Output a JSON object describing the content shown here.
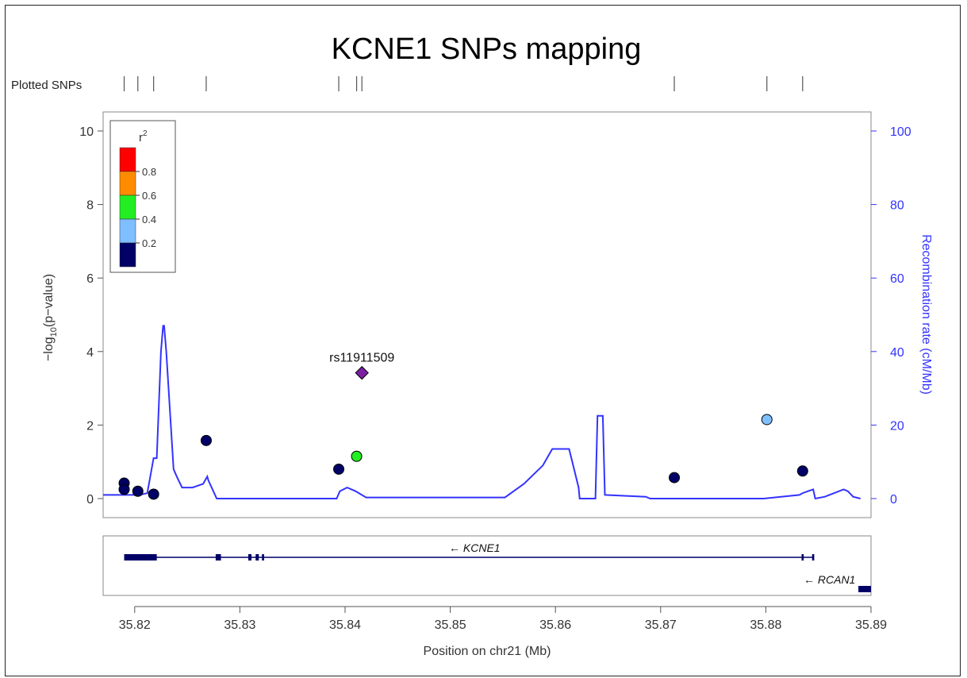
{
  "chart_data": {
    "type": "scatter",
    "title": "KCNE1 SNPs mapping",
    "plotted_snps_label": "Plotted SNPs",
    "xlabel": "Position on chr21 (Mb)",
    "ylabel": "-log10(p-value)",
    "ylabel_parts": {
      "pre": "−log",
      "sub": "10",
      "post": "(p−value)"
    },
    "y2label": "Recombination rate (cM/Mb)",
    "xlim": [
      35.817,
      35.89
    ],
    "ylim": [
      0,
      10
    ],
    "y2lim": [
      0,
      100
    ],
    "xticks": [
      35.82,
      35.83,
      35.84,
      35.85,
      35.86,
      35.87,
      35.88,
      35.89
    ],
    "yticks": [
      0,
      2,
      4,
      6,
      8,
      10
    ],
    "y2ticks": [
      0,
      20,
      40,
      60,
      80,
      100
    ],
    "colors": {
      "recomb_line": "#3333ff",
      "lead_snp": "#7b1fa2",
      "r2_0.0-0.2": "#000066",
      "r2_0.2-0.4": "#7fbfff",
      "r2_0.4-0.6": "#22ee22",
      "r2_0.6-0.8": "#ff8c00",
      "r2_0.8-1.0": "#ff0000"
    },
    "legend": {
      "title": "r",
      "title_sup": "2",
      "placement": "top-left",
      "bins": [
        {
          "color": "#ff0000",
          "label": "0.8"
        },
        {
          "color": "#ff8c00",
          "label": "0.6"
        },
        {
          "color": "#22ee22",
          "label": "0.4"
        },
        {
          "color": "#7fbfff",
          "label": "0.2"
        },
        {
          "color": "#000066",
          "label": ""
        }
      ]
    },
    "lead_snp": {
      "name": "rs11911509",
      "x": 35.8416,
      "y": 3.42,
      "color": "#7b1fa2",
      "shape": "diamond"
    },
    "snps": [
      {
        "x": 35.819,
        "y": 0.42,
        "color": "#000066"
      },
      {
        "x": 35.819,
        "y": 0.25,
        "color": "#000066"
      },
      {
        "x": 35.8203,
        "y": 0.2,
        "color": "#000066"
      },
      {
        "x": 35.8218,
        "y": 0.12,
        "color": "#000066"
      },
      {
        "x": 35.8268,
        "y": 1.58,
        "color": "#000066"
      },
      {
        "x": 35.8394,
        "y": 0.8,
        "color": "#000066"
      },
      {
        "x": 35.8411,
        "y": 1.15,
        "color": "#22ee22"
      },
      {
        "x": 35.8713,
        "y": 0.57,
        "color": "#000066"
      },
      {
        "x": 35.8801,
        "y": 2.15,
        "color": "#7fbfff"
      },
      {
        "x": 35.8835,
        "y": 0.75,
        "color": "#000066"
      }
    ],
    "plotted_snp_positions": [
      35.819,
      35.8203,
      35.8218,
      35.8268,
      35.8394,
      35.8411,
      35.8416,
      35.8713,
      35.8801,
      35.8835
    ],
    "recombination_rate": [
      [
        35.817,
        1
      ],
      [
        35.8185,
        1
      ],
      [
        35.8205,
        1
      ],
      [
        35.8212,
        1.5
      ],
      [
        35.8218,
        11
      ],
      [
        35.8221,
        11
      ],
      [
        35.8225,
        40
      ],
      [
        35.8227,
        47
      ],
      [
        35.8228,
        47
      ],
      [
        35.823,
        40
      ],
      [
        35.8237,
        8
      ],
      [
        35.824,
        6
      ],
      [
        35.8245,
        3
      ],
      [
        35.8255,
        3
      ],
      [
        35.826,
        3.5
      ],
      [
        35.8265,
        4
      ],
      [
        35.8269,
        6
      ],
      [
        35.827,
        5
      ],
      [
        35.8278,
        0
      ],
      [
        35.8392,
        0
      ],
      [
        35.8395,
        2
      ],
      [
        35.8402,
        3
      ],
      [
        35.841,
        2
      ],
      [
        35.842,
        0.3
      ],
      [
        35.8552,
        0.3
      ],
      [
        35.857,
        4
      ],
      [
        35.8588,
        9
      ],
      [
        35.8597,
        13.5
      ],
      [
        35.8608,
        13.5
      ],
      [
        35.8613,
        13.5
      ],
      [
        35.8622,
        3
      ],
      [
        35.8623,
        0
      ],
      [
        35.8638,
        0
      ],
      [
        35.864,
        22.5
      ],
      [
        35.8645,
        22.5
      ],
      [
        35.8647,
        1
      ],
      [
        35.8686,
        0.5
      ],
      [
        35.869,
        0
      ],
      [
        35.8798,
        0
      ],
      [
        35.8832,
        1
      ],
      [
        35.8835,
        1.5
      ],
      [
        35.8845,
        2.5
      ],
      [
        35.8847,
        0
      ],
      [
        35.8856,
        0.5
      ],
      [
        35.8865,
        1.5
      ],
      [
        35.8874,
        2.5
      ],
      [
        35.8878,
        2
      ],
      [
        35.8883,
        0.5
      ],
      [
        35.889,
        0
      ]
    ],
    "genes": [
      {
        "name": "KCNE1",
        "strand": "-",
        "label": "← KCNE1",
        "start": 35.819,
        "end": 35.8845,
        "exons": [
          [
            35.819,
            35.8221
          ],
          [
            35.8277,
            35.8282
          ],
          [
            35.8308,
            35.8311
          ],
          [
            35.8315,
            35.8318
          ],
          [
            35.8321,
            35.8323
          ],
          [
            35.8834,
            35.8836
          ],
          [
            35.8844,
            35.8846
          ]
        ]
      },
      {
        "name": "RCAN1",
        "strand": "-",
        "label": "← RCAN1",
        "start": 35.8888,
        "end": 35.89,
        "exons": [
          [
            35.8888,
            35.89
          ]
        ]
      }
    ]
  }
}
